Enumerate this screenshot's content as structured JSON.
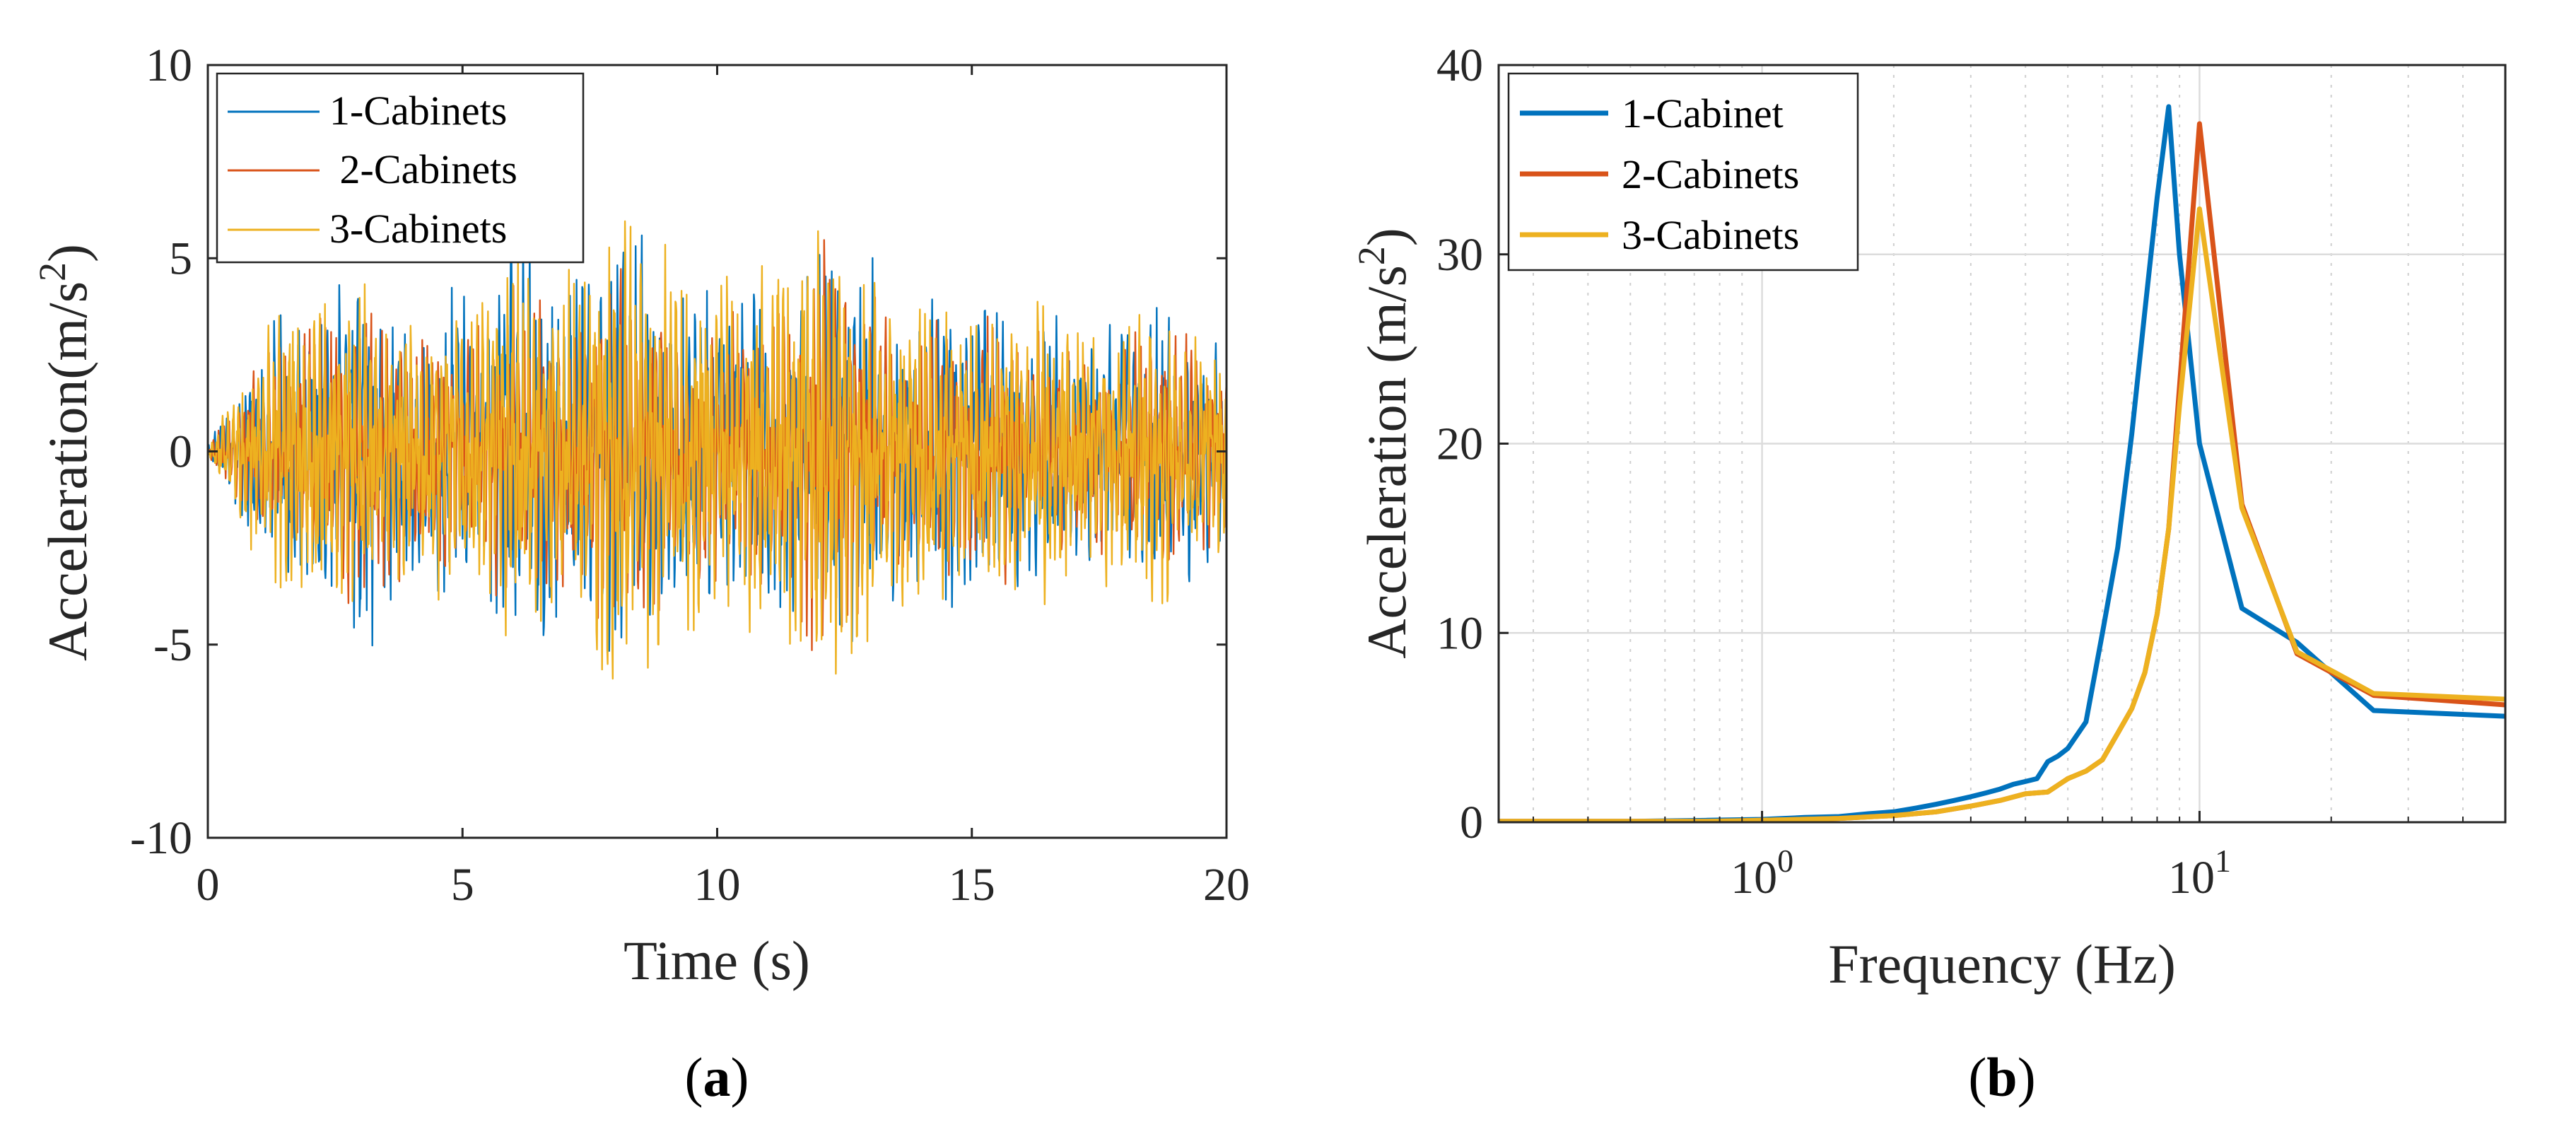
{
  "chart_data": [
    {
      "id": "a",
      "type": "line",
      "panel_label": "a",
      "xlabel": "Time (s)",
      "ylabel": "Acceleration(m/s",
      "ylabel_sup": "2",
      "ylabel_end": ")",
      "xlim": [
        0,
        20
      ],
      "ylim": [
        -10,
        10
      ],
      "xticks": [
        0,
        5,
        10,
        15,
        20
      ],
      "xtick_labels": [
        "0",
        "5",
        "10",
        "15",
        "20"
      ],
      "yticks": [
        -10,
        -5,
        0,
        5,
        10
      ],
      "ytick_labels": [
        "-10",
        "-5",
        "0",
        "5",
        "10"
      ],
      "grid": false,
      "legend_position": "top-left",
      "series": [
        {
          "name": "1-Cabinets",
          "color": "#0072bd",
          "envelope_t": [
            0,
            0.5,
            1,
            1.5,
            2,
            2.5,
            3,
            3.5,
            4,
            4.5,
            5,
            5.5,
            6,
            6.5,
            7,
            7.5,
            8,
            8.5,
            9,
            9.5,
            10,
            10.5,
            11,
            11.5,
            12,
            12.5,
            13,
            13.5,
            14,
            14.5,
            15,
            15.5,
            16,
            16.5,
            17,
            17.5,
            18,
            18.5,
            19,
            19.5,
            20
          ],
          "envelope_a": [
            0.1,
            1.2,
            2.5,
            3.2,
            3.8,
            3.5,
            4.6,
            3.8,
            3.2,
            3.6,
            3.3,
            3.6,
            5.0,
            4.5,
            3.8,
            4.1,
            4.8,
            4.4,
            4.0,
            3.6,
            3.6,
            3.4,
            3.3,
            3.7,
            4.4,
            4.0,
            4.0,
            3.1,
            3.2,
            3.5,
            3.1,
            3.4,
            2.9,
            2.9,
            2.7,
            2.7,
            3.0,
            3.4,
            3.1,
            2.6,
            2.2
          ],
          "frequency_hz": 8.6,
          "phase": 0.0
        },
        {
          "name": " 2-Cabinets",
          "color": "#d95319",
          "envelope_t": [
            0,
            0.5,
            1,
            1.5,
            2,
            2.5,
            3,
            3.5,
            4,
            4.5,
            5,
            5.5,
            6,
            6.5,
            7,
            7.5,
            8,
            8.5,
            9,
            9.5,
            10,
            10.5,
            11,
            11.5,
            12,
            12.5,
            13,
            13.5,
            14,
            14.5,
            15,
            15.5,
            16,
            16.5,
            17,
            17.5,
            18,
            18.5,
            19,
            19.5,
            20
          ],
          "envelope_a": [
            0.1,
            1.0,
            2.1,
            2.7,
            3.0,
            2.8,
            3.4,
            3.0,
            2.6,
            2.9,
            2.7,
            3.0,
            3.6,
            3.6,
            3.1,
            3.4,
            4.2,
            3.8,
            3.3,
            2.9,
            3.0,
            2.8,
            2.9,
            3.3,
            4.6,
            4.1,
            3.4,
            2.7,
            2.8,
            3.0,
            2.7,
            2.9,
            2.5,
            2.5,
            2.3,
            2.3,
            2.6,
            2.8,
            2.6,
            2.2,
            1.9
          ],
          "frequency_hz": 10.0,
          "phase": 1.1
        },
        {
          "name": "3-Cabinets",
          "color": "#edb120",
          "envelope_t": [
            0,
            0.5,
            1,
            1.5,
            2,
            2.5,
            3,
            3.5,
            4,
            4.5,
            5,
            5.5,
            6,
            6.5,
            7,
            7.5,
            8,
            8.5,
            9,
            9.5,
            10,
            10.5,
            11,
            11.5,
            12,
            12.5,
            13,
            13.5,
            14,
            14.5,
            15,
            15.5,
            16,
            16.5,
            17,
            17.5,
            18,
            18.5,
            19,
            19.5,
            20
          ],
          "envelope_a": [
            0.1,
            1.4,
            2.6,
            3.4,
            3.9,
            3.5,
            3.8,
            3.4,
            2.9,
            3.3,
            3.1,
            3.8,
            4.3,
            4.2,
            3.7,
            4.0,
            5.5,
            5.0,
            4.4,
            3.9,
            4.3,
            4.1,
            4.3,
            4.7,
            6.1,
            5.0,
            4.5,
            3.3,
            3.4,
            3.7,
            3.1,
            3.3,
            3.1,
            3.3,
            2.9,
            2.9,
            3.1,
            3.7,
            3.3,
            2.8,
            2.4
          ],
          "frequency_hz": 10.0,
          "phase": 2.3
        }
      ]
    },
    {
      "id": "b",
      "type": "line",
      "xscale": "log",
      "panel_label": "b",
      "xlabel": "Frequency (Hz)",
      "ylabel": "Acceleration (m/s",
      "ylabel_sup": "2",
      "ylabel_end": ")",
      "xlim": [
        0.25,
        50
      ],
      "ylim": [
        0,
        40
      ],
      "xticks": [
        1,
        10
      ],
      "xtick_base": "10",
      "xtick_exponents": [
        "0",
        "1"
      ],
      "yticks": [
        0,
        10,
        20,
        30,
        40
      ],
      "ytick_labels": [
        "0",
        "10",
        "20",
        "30",
        "40"
      ],
      "grid": true,
      "legend_position": "top-left",
      "series": [
        {
          "name": "1-Cabinet",
          "color": "#0072bd",
          "x": [
            0.25,
            0.5,
            0.75,
            1.0,
            1.25,
            1.5,
            1.75,
            2.0,
            2.25,
            2.5,
            2.75,
            3.0,
            3.25,
            3.5,
            3.75,
            4.0,
            4.25,
            4.5,
            4.75,
            5.0,
            5.5,
            6.0,
            6.5,
            7.0,
            7.5,
            8.0,
            8.5,
            9.0,
            10.0,
            12.5,
            16.7,
            25.0,
            50.0
          ],
          "y": [
            0.05,
            0.05,
            0.1,
            0.15,
            0.25,
            0.3,
            0.45,
            0.55,
            0.75,
            0.95,
            1.15,
            1.35,
            1.55,
            1.75,
            2.0,
            2.15,
            2.3,
            3.2,
            3.5,
            3.9,
            5.3,
            10.0,
            14.5,
            20.5,
            27.0,
            33.0,
            37.8,
            30.0,
            20.0,
            11.3,
            9.5,
            5.9,
            5.6
          ]
        },
        {
          "name": "2-Cabinets",
          "color": "#d95319",
          "x": [
            0.25,
            0.5,
            0.75,
            1.0,
            1.5,
            2.0,
            2.5,
            3.0,
            3.5,
            4.0,
            4.5,
            5.0,
            5.5,
            6.0,
            6.5,
            7.0,
            7.5,
            8.0,
            8.5,
            9.0,
            10.0,
            12.5,
            16.7,
            25.0,
            50.0
          ],
          "y": [
            0.05,
            0.05,
            0.05,
            0.1,
            0.2,
            0.35,
            0.55,
            0.85,
            1.15,
            1.5,
            1.6,
            2.3,
            2.7,
            3.3,
            4.7,
            6.0,
            7.9,
            11.0,
            15.5,
            23.0,
            36.9,
            16.8,
            8.9,
            6.7,
            6.2
          ]
        },
        {
          "name": "3-Cabinets",
          "color": "#edb120",
          "x": [
            0.25,
            0.5,
            0.75,
            1.0,
            1.5,
            2.0,
            2.5,
            3.0,
            3.5,
            4.0,
            4.5,
            5.0,
            5.5,
            6.0,
            6.5,
            7.0,
            7.5,
            8.0,
            8.5,
            9.0,
            10.0,
            12.5,
            16.7,
            25.0,
            50.0
          ],
          "y": [
            0.05,
            0.05,
            0.05,
            0.1,
            0.2,
            0.35,
            0.55,
            0.85,
            1.15,
            1.5,
            1.6,
            2.3,
            2.7,
            3.3,
            4.7,
            6.0,
            7.9,
            11.0,
            15.5,
            22.0,
            32.4,
            16.6,
            9.0,
            6.8,
            6.5
          ]
        }
      ]
    }
  ]
}
